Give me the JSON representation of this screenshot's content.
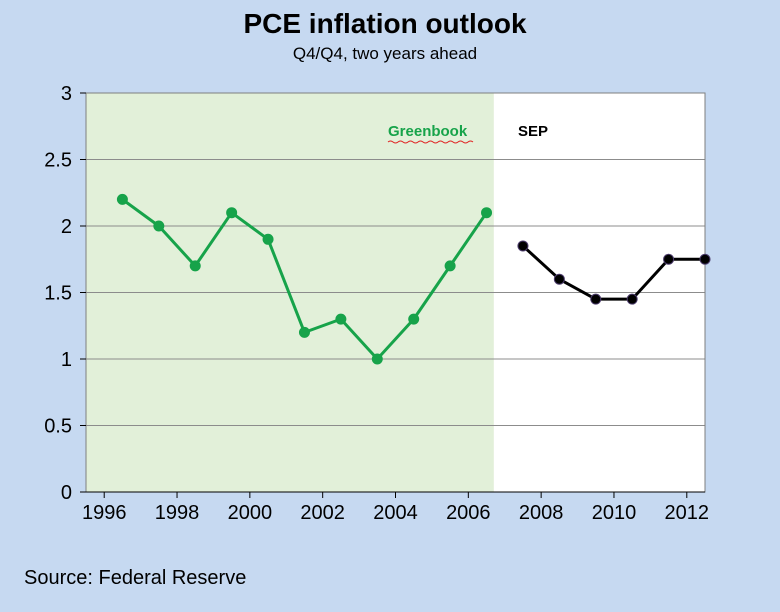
{
  "chart_data": {
    "type": "line",
    "title": "PCE inflation outlook",
    "subtitle": "Q4/Q4, two years ahead",
    "xlim": [
      1995.5,
      2012.5
    ],
    "ylim": [
      0,
      3
    ],
    "yticks": [
      0,
      0.5,
      1,
      1.5,
      2,
      2.5,
      3
    ],
    "yticklabels": [
      "0",
      "0.5",
      "1",
      "1.5",
      "2",
      "2.5",
      "3"
    ],
    "xticks": [
      1996,
      1998,
      2000,
      2002,
      2004,
      2006,
      2008,
      2010,
      2012
    ],
    "xticklabels": [
      "1996",
      "1998",
      "2000",
      "2002",
      "2004",
      "2006",
      "2008",
      "2010",
      "2012"
    ],
    "grid": true,
    "shaded_region": {
      "from": 1995.5,
      "to": 2006.7,
      "color": "#e2f0d9"
    },
    "series": [
      {
        "name": "Greenbook",
        "color": "#17a34a",
        "x": [
          1996.5,
          1997.5,
          1998.5,
          1999.5,
          2000.5,
          2001.5,
          2002.5,
          2003.5,
          2004.5,
          2005.5,
          2006.5
        ],
        "y": [
          2.2,
          2.0,
          1.7,
          2.1,
          1.9,
          1.2,
          1.3,
          1.0,
          1.3,
          1.7,
          2.1
        ]
      },
      {
        "name": "SEP",
        "color": "#000000",
        "x": [
          2007.5,
          2008.5,
          2009.5,
          2010.5,
          2011.5,
          2012.5
        ],
        "y": [
          1.85,
          1.6,
          1.45,
          1.45,
          1.75,
          1.75
        ]
      }
    ]
  },
  "source": "Source: Federal Reserve"
}
